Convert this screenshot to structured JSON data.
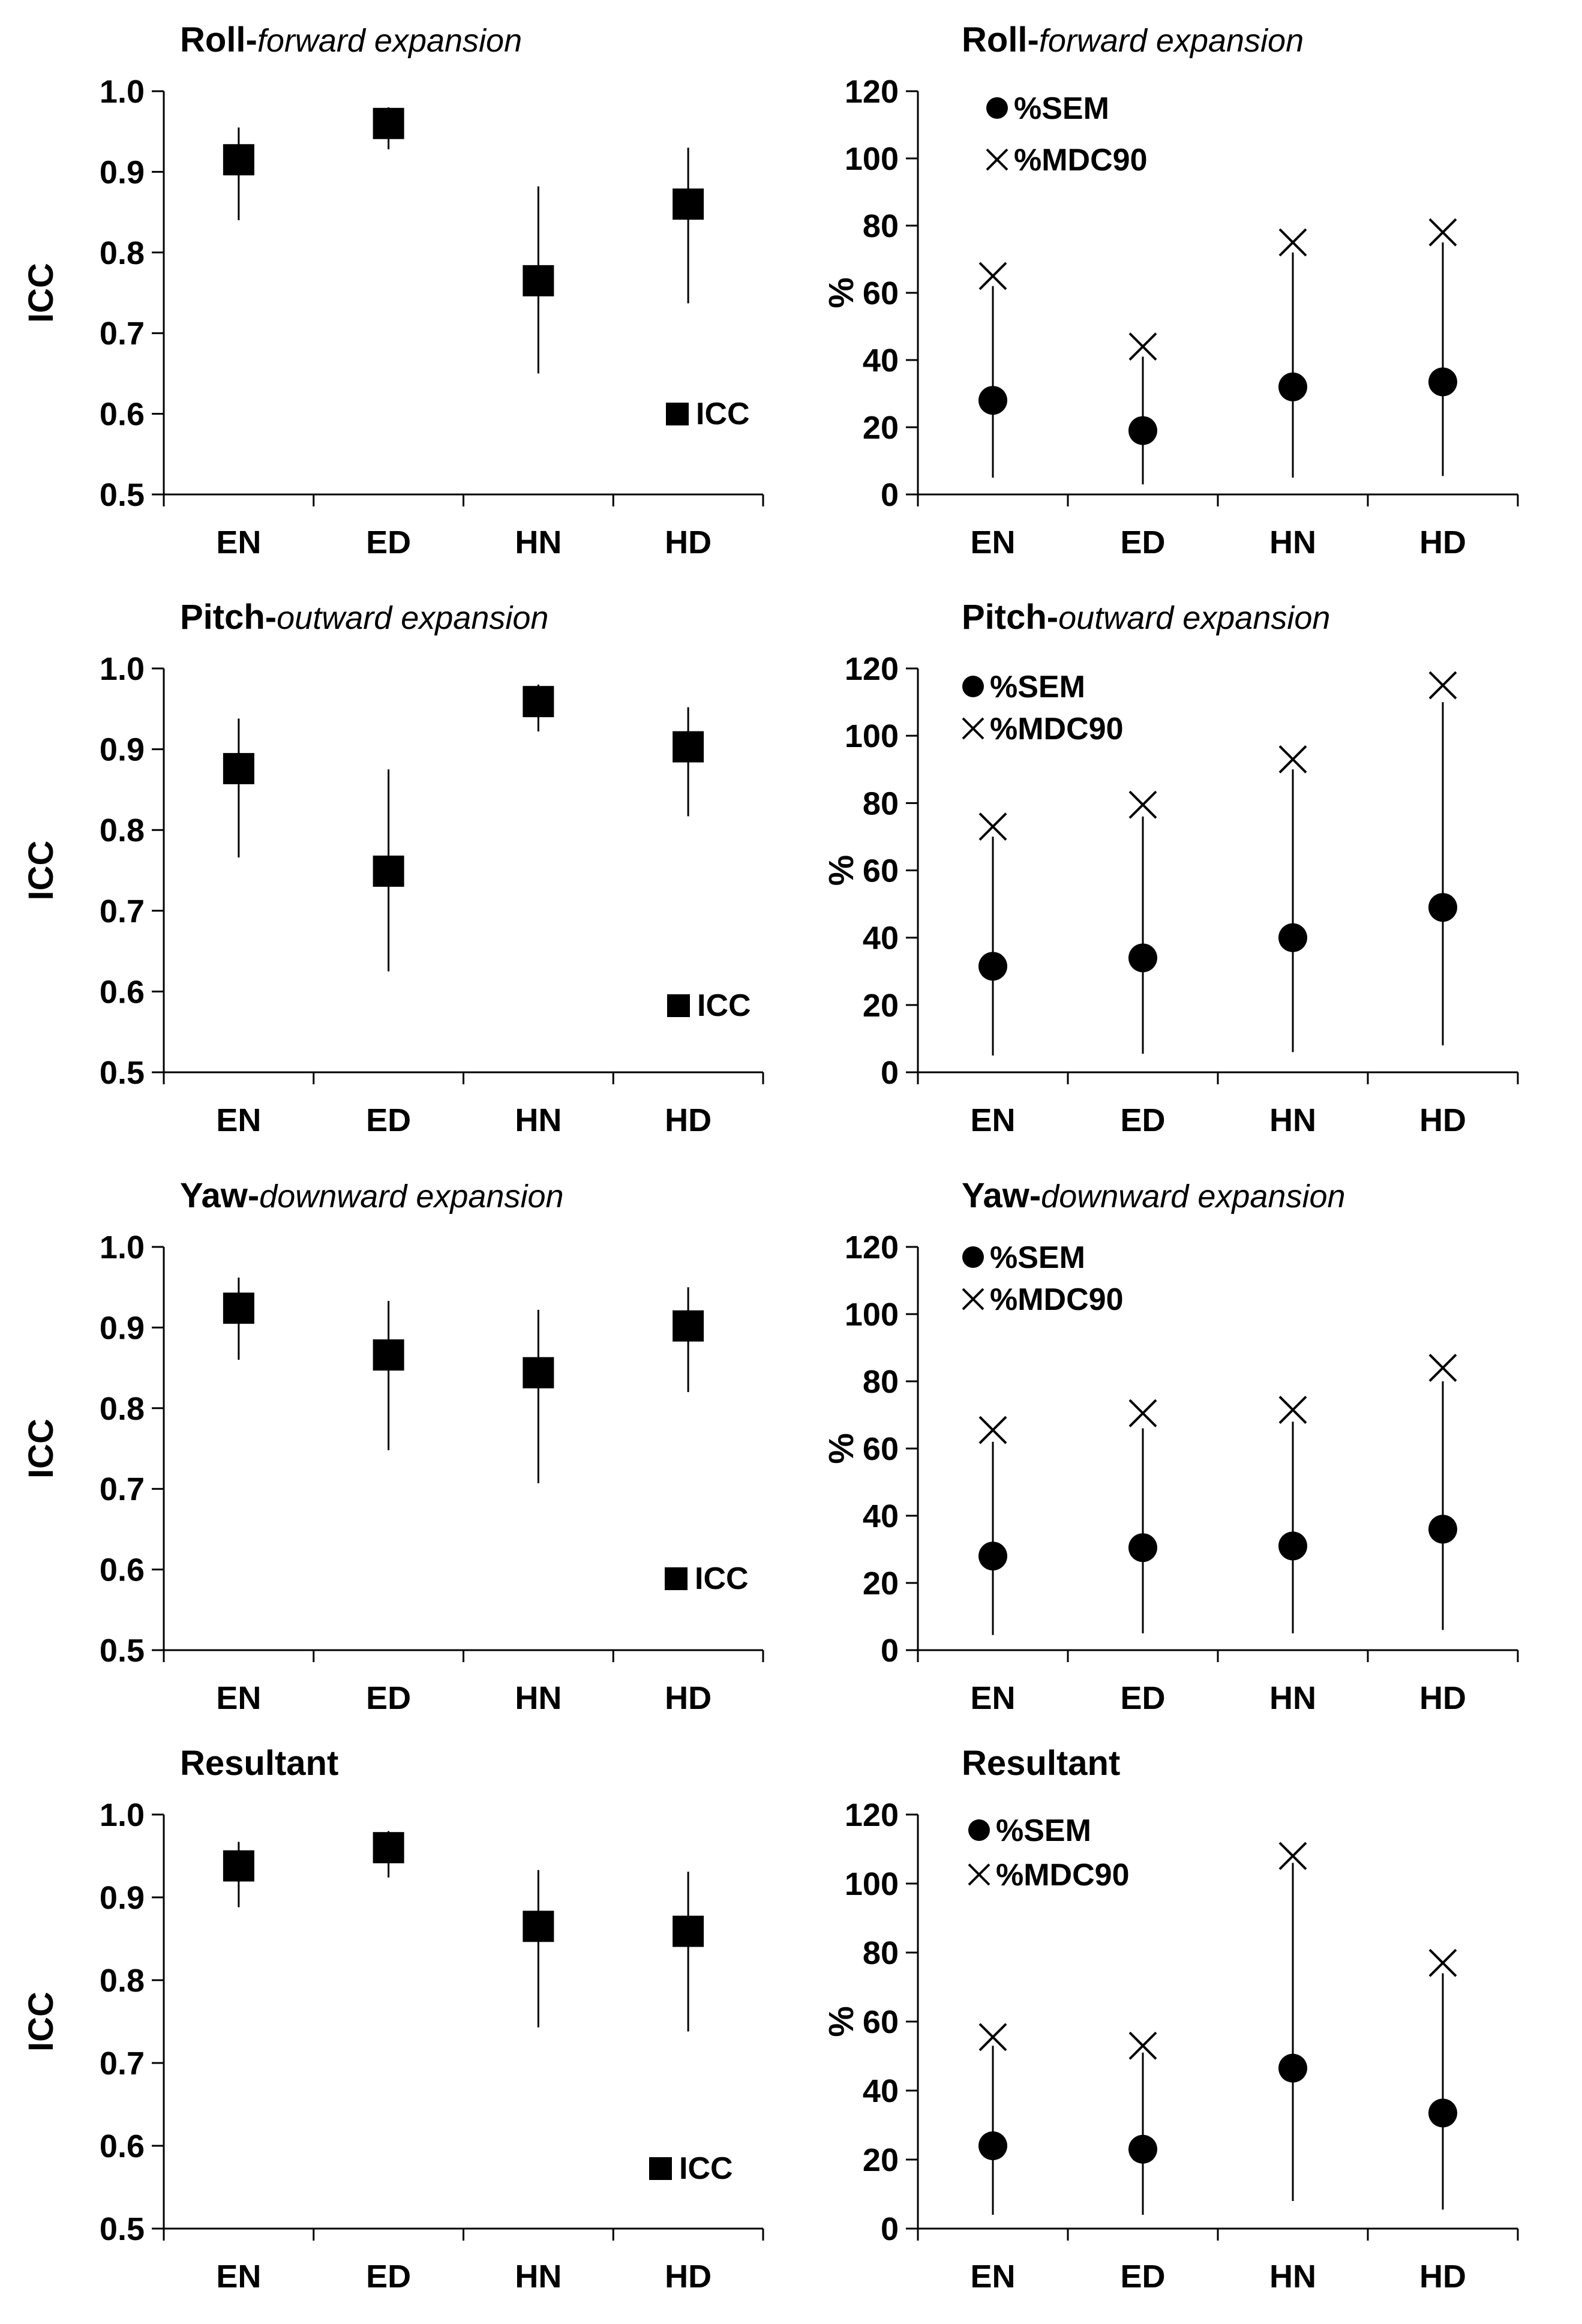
{
  "chart_data": [
    {
      "type": "scatter",
      "title": "Roll-forward expansion",
      "title_main": "Roll-",
      "title_sub": "forward expansion",
      "ylabel": "ICC",
      "categories": [
        "EN",
        "ED",
        "HN",
        "HD"
      ],
      "ylim": [
        0.5,
        1.0
      ],
      "yticks": [
        "0.5",
        "0.6",
        "0.7",
        "0.8",
        "0.9",
        "1.0"
      ],
      "series": [
        {
          "name": "ICC",
          "marker": "square",
          "values": [
            0.915,
            0.96,
            0.765,
            0.86
          ],
          "lower": [
            0.84,
            0.928,
            0.65,
            0.737
          ],
          "upper": [
            0.955,
            0.98,
            0.882,
            0.93
          ]
        }
      ],
      "legend": [
        "ICC"
      ]
    },
    {
      "type": "scatter",
      "title": "Roll-forward expansion",
      "title_main": "Roll-",
      "title_sub": "forward expansion",
      "ylabel": "%",
      "categories": [
        "EN",
        "ED",
        "HN",
        "HD"
      ],
      "ylim": [
        0,
        120
      ],
      "yticks": [
        "0",
        "20",
        "40",
        "60",
        "80",
        "100",
        "120"
      ],
      "series": [
        {
          "name": "%SEM",
          "marker": "circle",
          "values": [
            28,
            19,
            32,
            33.5
          ],
          "lower": [
            5,
            3,
            5,
            5.5
          ],
          "upper": [
            62,
            41,
            72,
            75
          ]
        },
        {
          "name": "%MDC90",
          "marker": "x",
          "values": [
            65,
            44,
            75,
            78
          ]
        }
      ],
      "legend": [
        "%SEM",
        "%MDC90"
      ]
    },
    {
      "type": "scatter",
      "title": "Pitch-outward expansion",
      "title_main": "Pitch-",
      "title_sub": "outward expansion",
      "ylabel": "ICC",
      "categories": [
        "EN",
        "ED",
        "HN",
        "HD"
      ],
      "ylim": [
        0.5,
        1.0
      ],
      "yticks": [
        "0.5",
        "0.6",
        "0.7",
        "0.8",
        "0.9",
        "1.0"
      ],
      "series": [
        {
          "name": "ICC",
          "marker": "square",
          "values": [
            0.876,
            0.749,
            0.959,
            0.903
          ],
          "lower": [
            0.766,
            0.625,
            0.922,
            0.817
          ],
          "upper": [
            0.938,
            0.875,
            0.98,
            0.952
          ]
        }
      ],
      "legend": [
        "ICC"
      ]
    },
    {
      "type": "scatter",
      "title": "Pitch-outward expansion",
      "title_main": "Pitch-",
      "title_sub": "outward expansion",
      "ylabel": "%",
      "categories": [
        "EN",
        "ED",
        "HN",
        "HD"
      ],
      "ylim": [
        0,
        120
      ],
      "yticks": [
        "0",
        "20",
        "40",
        "60",
        "80",
        "100",
        "120"
      ],
      "series": [
        {
          "name": "%SEM",
          "marker": "circle",
          "values": [
            31.5,
            34,
            40,
            49
          ],
          "lower": [
            5,
            5.5,
            6,
            8
          ],
          "upper": [
            70,
            76,
            90,
            110
          ]
        },
        {
          "name": "%MDC90",
          "marker": "x",
          "values": [
            73,
            79.5,
            93,
            115
          ]
        }
      ],
      "legend": [
        "%SEM",
        "%MDC90"
      ]
    },
    {
      "type": "scatter",
      "title": "Yaw-downward expansion",
      "title_main": "Yaw-",
      "title_sub": "downward expansion",
      "ylabel": "ICC",
      "categories": [
        "EN",
        "ED",
        "HN",
        "HD"
      ],
      "ylim": [
        0.5,
        1.0
      ],
      "yticks": [
        "0.5",
        "0.6",
        "0.7",
        "0.8",
        "0.9",
        "1.0"
      ],
      "series": [
        {
          "name": "ICC",
          "marker": "square",
          "values": [
            0.924,
            0.866,
            0.844,
            0.902
          ],
          "lower": [
            0.86,
            0.748,
            0.707,
            0.82
          ],
          "upper": [
            0.962,
            0.933,
            0.922,
            0.95
          ]
        }
      ],
      "legend": [
        "ICC"
      ]
    },
    {
      "type": "scatter",
      "title": "Yaw-downward expansion",
      "title_main": "Yaw-",
      "title_sub": "downward expansion",
      "ylabel": "%",
      "categories": [
        "EN",
        "ED",
        "HN",
        "HD"
      ],
      "ylim": [
        0,
        120
      ],
      "yticks": [
        "0",
        "20",
        "40",
        "60",
        "80",
        "100",
        "120"
      ],
      "series": [
        {
          "name": "%SEM",
          "marker": "circle",
          "values": [
            28,
            30.5,
            31,
            36
          ],
          "lower": [
            4.5,
            5,
            5,
            6
          ],
          "upper": [
            62,
            66,
            68,
            80
          ]
        },
        {
          "name": "%MDC90",
          "marker": "x",
          "values": [
            65.5,
            70.5,
            71.5,
            84
          ]
        }
      ],
      "legend": [
        "%SEM",
        "%MDC90"
      ]
    },
    {
      "type": "scatter",
      "title": "Resultant",
      "title_main": "Resultant",
      "title_sub": "",
      "ylabel": "ICC",
      "categories": [
        "EN",
        "ED",
        "HN",
        "HD"
      ],
      "ylim": [
        0.5,
        1.0
      ],
      "yticks": [
        "0.5",
        "0.6",
        "0.7",
        "0.8",
        "0.9",
        "1.0"
      ],
      "series": [
        {
          "name": "ICC",
          "marker": "square",
          "values": [
            0.938,
            0.96,
            0.865,
            0.859
          ],
          "lower": [
            0.888,
            0.924,
            0.743,
            0.738
          ],
          "upper": [
            0.967,
            0.98,
            0.933,
            0.931
          ]
        }
      ],
      "legend": [
        "ICC"
      ]
    },
    {
      "type": "scatter",
      "title": "Resultant",
      "title_main": "Resultant",
      "title_sub": "",
      "ylabel": "%",
      "categories": [
        "EN",
        "ED",
        "HN",
        "HD"
      ],
      "ylim": [
        0,
        120
      ],
      "yticks": [
        "0",
        "20",
        "40",
        "60",
        "80",
        "100",
        "120"
      ],
      "series": [
        {
          "name": "%SEM",
          "marker": "circle",
          "values": [
            24,
            23,
            46.5,
            33.5
          ],
          "lower": [
            4,
            4,
            8,
            5.5
          ],
          "upper": [
            53,
            51,
            106,
            74
          ]
        },
        {
          "name": "%MDC90",
          "marker": "x",
          "values": [
            55.5,
            53,
            108,
            77
          ]
        }
      ],
      "legend": [
        "%SEM",
        "%MDC90"
      ]
    }
  ]
}
